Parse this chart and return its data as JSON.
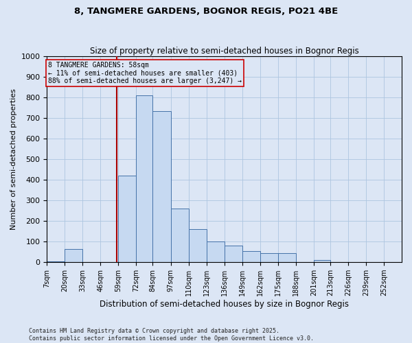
{
  "title1": "8, TANGMERE GARDENS, BOGNOR REGIS, PO21 4BE",
  "title2": "Size of property relative to semi-detached houses in Bognor Regis",
  "xlabel": "Distribution of semi-detached houses by size in Bognor Regis",
  "ylabel": "Number of semi-detached properties",
  "footnote1": "Contains HM Land Registry data © Crown copyright and database right 2025.",
  "footnote2": "Contains public sector information licensed under the Open Government Licence v3.0.",
  "property_size": 58,
  "annotation_title": "8 TANGMERE GARDENS: 58sqm",
  "annotation_line1": "← 11% of semi-detached houses are smaller (403)",
  "annotation_line2": "88% of semi-detached houses are larger (3,247) →",
  "bar_edges": [
    7,
    20,
    33,
    46,
    59,
    72,
    84,
    97,
    110,
    123,
    136,
    149,
    162,
    175,
    188,
    201,
    213,
    226,
    239,
    252,
    265
  ],
  "bar_heights": [
    3,
    65,
    0,
    0,
    420,
    810,
    735,
    260,
    160,
    100,
    80,
    55,
    45,
    45,
    0,
    10,
    0,
    0,
    0,
    0
  ],
  "bar_color": "#c6d9f1",
  "bar_edge_color": "#4472a8",
  "vline_color": "#aa0000",
  "grid_color": "#adc5e0",
  "bg_color": "#dce6f5",
  "annotation_box_color": "#cc0000",
  "ylim": [
    0,
    1000
  ],
  "yticks": [
    0,
    100,
    200,
    300,
    400,
    500,
    600,
    700,
    800,
    900,
    1000
  ],
  "figsize": [
    6.0,
    5.0
  ],
  "dpi": 100
}
